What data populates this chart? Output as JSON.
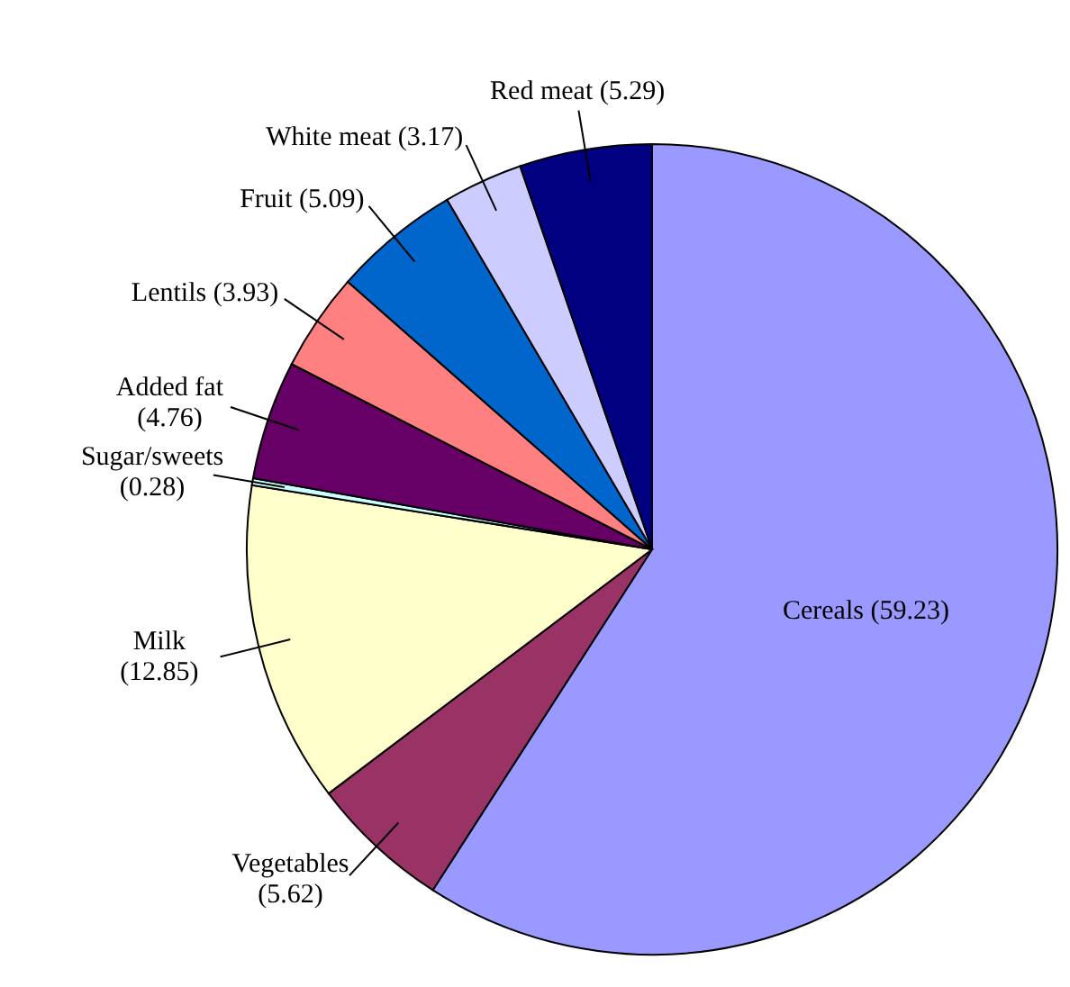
{
  "chart_data": {
    "type": "pie",
    "categories": [
      "Cereals",
      "Vegetables",
      "Milk",
      "Sugar/sweets",
      "Added fat",
      "Lentils",
      "Fruit",
      "White meat",
      "Red meat"
    ],
    "values": [
      59.23,
      5.62,
      12.85,
      0.28,
      4.76,
      3.93,
      5.09,
      3.17,
      5.29
    ],
    "colors": [
      "#9999ff",
      "#993366",
      "#ffffcc",
      "#ccffff",
      "#660066",
      "#ff8080",
      "#0066cc",
      "#ccccff",
      "#000080"
    ],
    "value_labels": [
      "(59.23)",
      "(5.62)",
      "(12.85)",
      "(0.28)",
      "(4.76)",
      "(3.93)",
      "(5.09)",
      "(3.17)",
      "(5.29)"
    ]
  }
}
